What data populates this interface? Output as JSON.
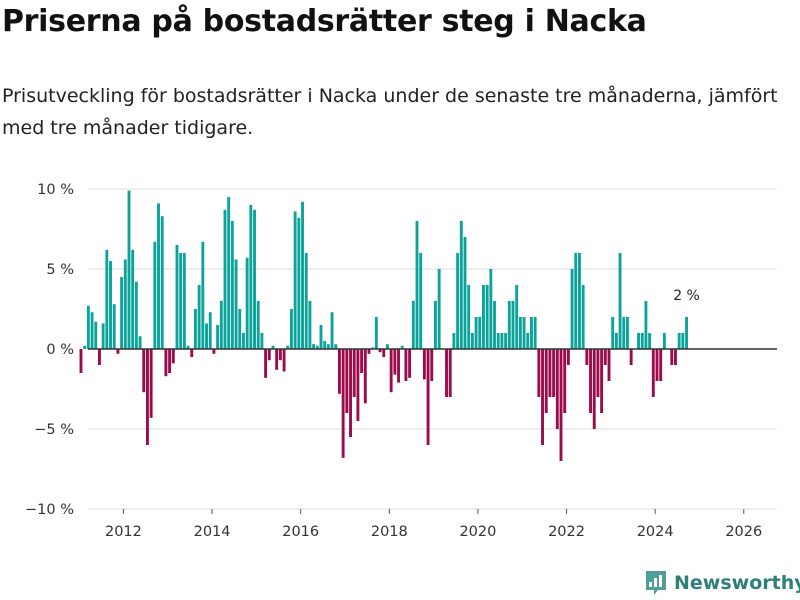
{
  "title": "Priserna på bostadsrätter steg i Nacka",
  "subtitle": "Prisutveckling för bostadsrätter i Nacka under de senaste tre månaderna, jämfört med tre månader tidigare.",
  "brand": "Newsworthy",
  "colors": {
    "positive": "#0ba39a",
    "negative": "#9b0a4a",
    "grid": "#dddddd",
    "zero": "#333333",
    "brand": "#2f7f79"
  },
  "chart_data": {
    "type": "bar",
    "title": "Priserna på bostadsrätter steg i Nacka",
    "xlabel": "",
    "ylabel": "",
    "ylim": [
      -10,
      10
    ],
    "xlim": [
      2011.2,
      2026.75
    ],
    "grid": true,
    "y_ticks": [
      {
        "value": 10,
        "label": "10 %"
      },
      {
        "value": 5,
        "label": "5 %"
      },
      {
        "value": 0,
        "label": "0 %"
      },
      {
        "value": -5,
        "label": "−5 %"
      },
      {
        "value": -10,
        "label": "−10 %"
      }
    ],
    "x_ticks": [
      {
        "value": 2012,
        "label": "2012"
      },
      {
        "value": 2014,
        "label": "2014"
      },
      {
        "value": 2016,
        "label": "2016"
      },
      {
        "value": 2018,
        "label": "2018"
      },
      {
        "value": 2020,
        "label": "2020"
      },
      {
        "value": 2022,
        "label": "2022"
      },
      {
        "value": 2024,
        "label": "2024"
      },
      {
        "value": 2026,
        "label": "2026"
      }
    ],
    "start_year": 2011,
    "start_month": 1,
    "values": [
      -1.5,
      0.2,
      2.7,
      2.3,
      1.7,
      -1.0,
      1.6,
      6.2,
      5.5,
      2.8,
      -0.3,
      4.5,
      5.6,
      9.9,
      6.2,
      4.2,
      0.8,
      -2.7,
      -6.0,
      -4.3,
      6.7,
      9.1,
      8.3,
      -1.7,
      -1.5,
      -0.9,
      6.5,
      6.0,
      6.0,
      0.2,
      -0.5,
      2.5,
      4.0,
      6.7,
      1.6,
      2.3,
      -0.3,
      1.5,
      3.0,
      8.7,
      9.5,
      8.0,
      5.6,
      2.5,
      1.0,
      5.7,
      9.0,
      8.7,
      3.0,
      1.0,
      -1.8,
      -0.7,
      0.2,
      -1.3,
      -0.7,
      -1.4,
      0.2,
      2.5,
      8.6,
      8.2,
      9.2,
      6.0,
      3.0,
      0.3,
      0.2,
      1.5,
      0.5,
      0.3,
      2.3,
      0.3,
      -2.8,
      -6.8,
      -4.0,
      -5.5,
      -3.0,
      -4.5,
      -1.5,
      -3.4,
      -0.3,
      0.1,
      2.0,
      -0.2,
      -0.5,
      0.3,
      -2.7,
      -1.6,
      -2.1,
      0.2,
      -2.0,
      -1.8,
      3.0,
      8.0,
      6.0,
      -1.9,
      -6.0,
      -2.0,
      3.0,
      5.0,
      0.0,
      -3.0,
      -3.0,
      1.0,
      6.0,
      8.0,
      7.0,
      4.0,
      1.0,
      2.0,
      2.0,
      4.0,
      4.0,
      5.0,
      3.0,
      1.0,
      1.0,
      1.0,
      3.0,
      3.0,
      4.0,
      2.0,
      2.0,
      1.0,
      2.0,
      2.0,
      -3.0,
      -6.0,
      -4.0,
      -3.0,
      -3.0,
      -5.0,
      -7.0,
      -4.0,
      -1.0,
      5.0,
      6.0,
      6.0,
      4.0,
      -1.0,
      -4.0,
      -5.0,
      -3.0,
      -4.0,
      -1.0,
      -2.0,
      2.0,
      1.0,
      6.0,
      2.0,
      2.0,
      -1.0,
      0.0,
      1.0,
      1.0,
      3.0,
      1.0,
      -3.0,
      -2.0,
      -2.0,
      1.0,
      0.0,
      -1.0,
      -1.0,
      1.0,
      1.0,
      2.0
    ],
    "annotation": {
      "text": "2 %",
      "value": 2
    }
  }
}
